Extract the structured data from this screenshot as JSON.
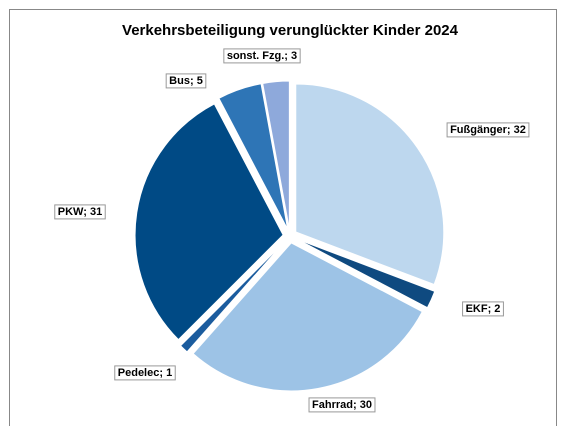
{
  "chart_data": {
    "type": "pie",
    "title": "Verkehrsbeteiligung verunglückter Kinder 2024",
    "categories": [
      "Fußgänger",
      "EKF",
      "Fahrrad",
      "Pedelec",
      "PKW",
      "Bus",
      "sonst. Fzg."
    ],
    "values": [
      32,
      2,
      30,
      1,
      31,
      5,
      3
    ],
    "colors": [
      "#bdd7ee",
      "#0f4a80",
      "#9dc3e6",
      "#1b5c9e",
      "#004a85",
      "#2e75b6",
      "#8ea9db"
    ]
  }
}
